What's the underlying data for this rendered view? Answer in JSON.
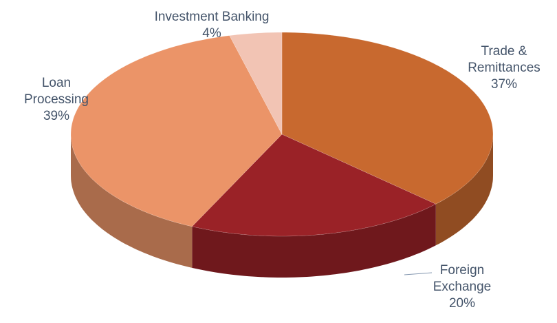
{
  "chart_data": {
    "type": "pie3d",
    "categories": [
      "Trade & Remittances",
      "Foreign Exchange",
      "Loan Processing",
      "Investment Banking"
    ],
    "values": [
      37,
      20,
      39,
      4
    ],
    "value_labels": [
      "37%",
      "20%",
      "39%",
      "4%"
    ],
    "colors": [
      "#c8692f",
      "#9a2227",
      "#eb9468",
      "#f2c4b4"
    ]
  }
}
